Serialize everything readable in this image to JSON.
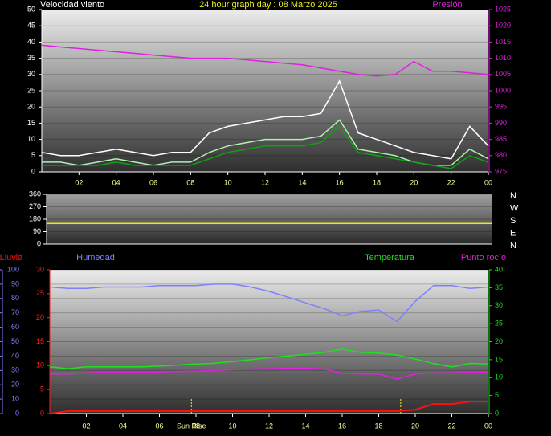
{
  "chart_data": [
    {
      "type": "line",
      "title": "24 hour graph day : 08 Marzo 2025",
      "y_label": "Velocidad viento",
      "x": [
        0,
        1,
        2,
        3,
        4,
        5,
        6,
        7,
        8,
        9,
        10,
        11,
        12,
        13,
        14,
        15,
        16,
        17,
        18,
        19,
        20,
        21,
        22,
        23,
        24
      ],
      "xlim": [
        0,
        24
      ],
      "xticks": [
        {
          "value": 2,
          "label": "02"
        },
        {
          "value": 4,
          "label": "04"
        },
        {
          "value": 6,
          "label": "06"
        },
        {
          "value": 8,
          "label": "08"
        },
        10,
        12,
        14,
        16,
        18,
        20,
        22,
        {
          "value": 24,
          "label": "00"
        }
      ],
      "ylim": [
        0,
        50
      ],
      "yticks": [
        0,
        5,
        10,
        15,
        20,
        25,
        30,
        35,
        40,
        45,
        50
      ],
      "y2lim": [
        975,
        1025
      ],
      "y2ticks": [
        975,
        980,
        985,
        990,
        995,
        1000,
        1005,
        1010,
        1015,
        1020,
        1025
      ],
      "grid": true,
      "series": [
        {
          "color": "#ffffff",
          "values": [
            6,
            5,
            5,
            6,
            7,
            6,
            5,
            6,
            6,
            12,
            14,
            15,
            16,
            17,
            17,
            18,
            28,
            12,
            10,
            8,
            6,
            5,
            4,
            14,
            8
          ]
        },
        {
          "color": "#b0f0b0",
          "values": [
            3,
            3,
            2,
            3,
            4,
            3,
            2,
            3,
            3,
            6,
            8,
            9,
            10,
            10,
            10,
            11,
            16,
            7,
            6,
            5,
            3,
            2,
            2,
            7,
            4
          ]
        },
        {
          "color": "#10a010",
          "values": [
            2,
            2,
            2,
            2,
            3,
            2,
            2,
            2,
            2,
            4,
            6,
            7,
            8,
            8,
            8,
            9,
            14,
            6,
            5,
            4,
            3,
            2,
            1,
            5,
            3
          ]
        },
        {
          "name": "Presión",
          "color": "#e020e0",
          "axis": "y2",
          "values": [
            1014,
            1013.5,
            1013,
            1012.5,
            1012,
            1011.5,
            1011,
            1010.5,
            1010,
            1010,
            1010,
            1009.5,
            1009,
            1008.5,
            1008,
            1007,
            1006,
            1005,
            1004.5,
            1005,
            1009,
            1006,
            1006,
            1005.5,
            1005
          ]
        }
      ]
    },
    {
      "type": "line",
      "x": [
        0,
        1,
        2,
        3,
        4,
        5,
        6,
        7,
        8,
        9,
        10,
        11,
        12,
        13,
        14,
        15,
        16,
        17,
        18,
        19,
        20,
        21,
        22,
        23,
        24
      ],
      "xlim": [
        0,
        24
      ],
      "ylim": [
        0,
        360
      ],
      "yticks": [
        0,
        90,
        180,
        270,
        360
      ],
      "y2lim": [
        0,
        360
      ],
      "y2ticks": [
        {
          "value": 0,
          "label": "N"
        },
        {
          "value": 90,
          "label": "E"
        },
        {
          "value": 180,
          "label": "S"
        },
        {
          "value": 270,
          "label": "W"
        },
        {
          "value": 360,
          "label": "N"
        }
      ],
      "grid": true,
      "series": [
        {
          "color": "#e8e820",
          "values": [
            150,
            150,
            150,
            150,
            150,
            150,
            150,
            150,
            150,
            150,
            150,
            150,
            150,
            150,
            150,
            150,
            150,
            150,
            150,
            150,
            150,
            150,
            150,
            150,
            150
          ]
        }
      ]
    },
    {
      "type": "line",
      "x": [
        0,
        1,
        2,
        3,
        4,
        5,
        6,
        7,
        8,
        9,
        10,
        11,
        12,
        13,
        14,
        15,
        16,
        17,
        18,
        19,
        20,
        21,
        22,
        23,
        24
      ],
      "xlim": [
        0,
        24
      ],
      "xticks": [
        {
          "value": 2,
          "label": "02"
        },
        {
          "value": 4,
          "label": "04"
        },
        {
          "value": 6,
          "label": "06"
        },
        {
          "value": 8,
          "label": "08"
        },
        10,
        12,
        14,
        16,
        18,
        20,
        22,
        {
          "value": 24,
          "label": "00"
        }
      ],
      "ylim": [
        0,
        100
      ],
      "yticks": [
        0,
        10,
        20,
        30,
        40,
        50,
        60,
        70,
        80,
        90,
        100
      ],
      "y2lim": [
        0,
        40
      ],
      "y2ticks": [
        0,
        5,
        10,
        15,
        20,
        25,
        30,
        35,
        40
      ],
      "y3lim": [
        0,
        30
      ],
      "y3ticks": [
        0,
        5,
        10,
        15,
        20,
        25,
        30
      ],
      "grid": true,
      "annotations": [
        {
          "x": 7.75,
          "label": "Sun Rise"
        },
        {
          "x": 19.2
        }
      ],
      "series": [
        {
          "name": "Lluvia",
          "color": "#ff1010",
          "axis": "y3",
          "values": [
            0,
            0.5,
            0.5,
            0.5,
            0.5,
            0.5,
            0.5,
            0.5,
            0.5,
            0.5,
            0.5,
            0.5,
            0.5,
            0.5,
            0.5,
            0.5,
            0.5,
            0.5,
            0.5,
            0.5,
            0.8,
            2,
            2,
            2.5,
            2.5
          ]
        },
        {
          "name": "Humedad",
          "color": "#8080ff",
          "values": [
            88,
            87,
            87,
            88,
            88,
            88,
            89,
            89,
            89,
            90,
            90,
            88,
            85,
            81,
            77,
            73,
            68,
            71,
            72,
            64,
            78,
            89,
            89,
            87,
            88
          ]
        },
        {
          "name": "Temperatura",
          "color": "#20e020",
          "axis": "y2",
          "values": [
            13,
            12.5,
            13,
            13,
            13,
            13,
            13.2,
            13.5,
            13.8,
            14,
            14.5,
            15,
            15.6,
            16,
            16.5,
            17,
            17.9,
            17,
            16.8,
            16.3,
            15.2,
            13.9,
            13,
            14,
            13.8
          ]
        },
        {
          "name": "Punto rocío",
          "color": "#e020e0",
          "axis": "y2",
          "values": [
            11,
            11,
            11.3,
            11.5,
            11.5,
            11.5,
            11.6,
            11.7,
            11.8,
            12,
            12.2,
            12.4,
            12.5,
            12.6,
            12.7,
            12.4,
            11.2,
            11,
            11,
            9.6,
            11,
            11.3,
            11.3,
            11.5,
            11.6
          ]
        }
      ]
    }
  ]
}
